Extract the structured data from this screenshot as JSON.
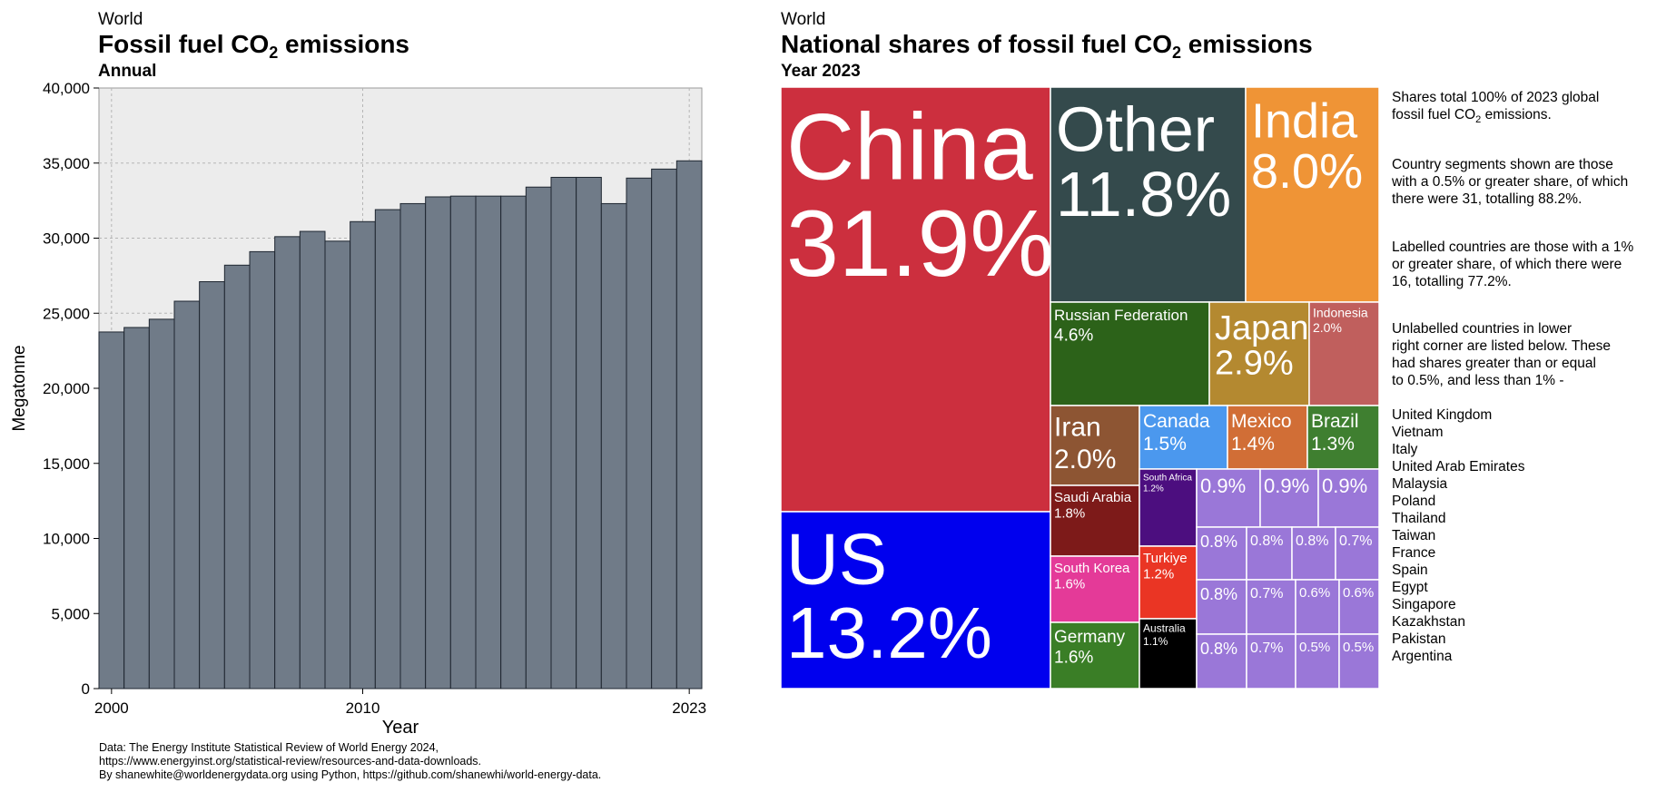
{
  "left_chart": {
    "region": "World",
    "title_pre": "Fossil fuel CO",
    "title_sub": "2",
    "title_post": " emissions",
    "subtitle": "Annual",
    "ylabel": "Megatonne",
    "xlabel": "Year",
    "source_lines": [
      "Data: The Energy Institute Statistical Review of World Energy 2024,",
      "https://www.energyinst.org/statistical-review/resources-and-data-downloads.",
      "By shanewhite@worldenergydata.org using Python, https://github.com/shanewhi/world-energy-data."
    ]
  },
  "right_chart": {
    "region": "World",
    "title_pre": "National shares of fossil fuel CO",
    "title_sub": "2",
    "title_post": " emissions",
    "subtitle": "Year 2023",
    "notes": {
      "p1_pre": "Shares total 100% of 2023 global",
      "p1_line2_pre": "fossil fuel CO",
      "p1_line2_sub": "2",
      "p1_line2_post": " emissions.",
      "p2": [
        "Country segments shown are those",
        "with a 0.5% or greater share, of which",
        "there were 31, totalling 88.2%."
      ],
      "p3": [
        "Labelled countries are those with a 1%",
        "or greater share, of which there were",
        "16, totalling 77.2%."
      ],
      "p4": [
        "Unlabelled countries in lower",
        "right corner are listed below. These",
        "had shares greater than or equal",
        "to 0.5%, and less than 1% -"
      ],
      "unlabelled_countries": [
        "United Kingdom",
        "Vietnam",
        "Italy",
        "United Arab Emirates",
        "Malaysia",
        "Poland",
        "Thailand",
        "Taiwan",
        "France",
        "Spain",
        "Egypt",
        "Singapore",
        "Kazakhstan",
        "Pakistan",
        "Argentina"
      ]
    }
  },
  "chart_data": [
    {
      "type": "bar",
      "title": "Fossil fuel CO2 emissions",
      "subtitle": "Annual",
      "xlabel": "Year",
      "ylabel": "Megatonne",
      "x_ticks": [
        "2000",
        "2010",
        "2023"
      ],
      "y_ticks": [
        "0",
        "5,000",
        "10,000",
        "15,000",
        "20,000",
        "25,000",
        "30,000",
        "35,000",
        "40,000"
      ],
      "ylim": [
        0,
        40000
      ],
      "grid": true,
      "categories": [
        "2000",
        "2001",
        "2002",
        "2003",
        "2004",
        "2005",
        "2006",
        "2007",
        "2008",
        "2009",
        "2010",
        "2011",
        "2012",
        "2013",
        "2014",
        "2015",
        "2016",
        "2017",
        "2018",
        "2019",
        "2020",
        "2021",
        "2022",
        "2023"
      ],
      "values": [
        23750,
        24050,
        24600,
        25800,
        27100,
        28200,
        29100,
        30100,
        30450,
        29800,
        31100,
        31900,
        32300,
        32750,
        32800,
        32800,
        32800,
        33400,
        34050,
        34050,
        32300,
        34000,
        34600,
        35150
      ],
      "bar_color": "#707b88"
    },
    {
      "type": "treemap",
      "title": "National shares of fossil fuel CO2 emissions",
      "subtitle": "Year 2023",
      "items": [
        {
          "name": "China",
          "value": "31.9%",
          "color": "#cc2f3e"
        },
        {
          "name": "US",
          "value": "13.2%",
          "color": "#0000ee"
        },
        {
          "name": "Other",
          "value": "11.8%",
          "color": "#344a4c"
        },
        {
          "name": "India",
          "value": "8.0%",
          "color": "#ef9436"
        },
        {
          "name": "Russian Federation",
          "value": "4.6%",
          "color": "#2c6219"
        },
        {
          "name": "Japan",
          "value": "2.9%",
          "color": "#b48930"
        },
        {
          "name": "Indonesia",
          "value": "2.0%",
          "color": "#c05f5d"
        },
        {
          "name": "Iran",
          "value": "2.0%",
          "color": "#8d5533"
        },
        {
          "name": "Canada",
          "value": "1.5%",
          "color": "#4b98ee"
        },
        {
          "name": "Mexico",
          "value": "1.4%",
          "color": "#d16e36"
        },
        {
          "name": "Brazil",
          "value": "1.3%",
          "color": "#3f7f30"
        },
        {
          "name": "Saudi Arabia",
          "value": "1.8%",
          "color": "#7d1a19"
        },
        {
          "name": "South Africa",
          "value": "1.2%",
          "color": "#4c0e7f"
        },
        {
          "name": "South Korea",
          "value": "1.6%",
          "color": "#e43a98"
        },
        {
          "name": "Turkiye",
          "value": "1.2%",
          "color": "#ea3524"
        },
        {
          "name": "Germany",
          "value": "1.6%",
          "color": "#3a7e26"
        },
        {
          "name": "Australia",
          "value": "1.1%",
          "color": "#000000"
        },
        {
          "name": "",
          "value": "0.9%",
          "color": "#9a77d8"
        },
        {
          "name": "",
          "value": "0.9%",
          "color": "#9a77d8"
        },
        {
          "name": "",
          "value": "0.9%",
          "color": "#9a77d8"
        },
        {
          "name": "",
          "value": "0.8%",
          "color": "#9a77d8"
        },
        {
          "name": "",
          "value": "0.8%",
          "color": "#9a77d8"
        },
        {
          "name": "",
          "value": "0.8%",
          "color": "#9a77d8"
        },
        {
          "name": "",
          "value": "0.7%",
          "color": "#9a77d8"
        },
        {
          "name": "",
          "value": "0.8%",
          "color": "#9a77d8"
        },
        {
          "name": "",
          "value": "0.7%",
          "color": "#9a77d8"
        },
        {
          "name": "",
          "value": "0.6%",
          "color": "#9a77d8"
        },
        {
          "name": "",
          "value": "0.6%",
          "color": "#9a77d8"
        },
        {
          "name": "",
          "value": "0.8%",
          "color": "#9a77d8"
        },
        {
          "name": "",
          "value": "0.7%",
          "color": "#9a77d8"
        },
        {
          "name": "",
          "value": "0.5%",
          "color": "#9a77d8"
        },
        {
          "name": "",
          "value": "0.5%",
          "color": "#9a77d8"
        }
      ]
    }
  ]
}
